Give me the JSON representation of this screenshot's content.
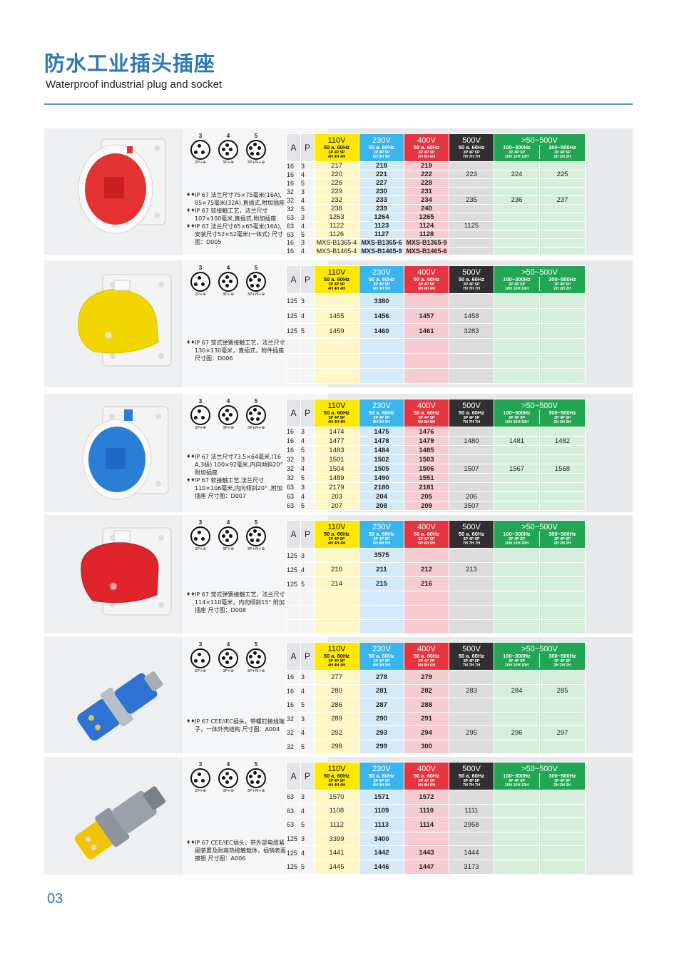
{
  "page": {
    "title_cn": "防水工业插头插座",
    "title_en": "Waterproof industrial plug and socket",
    "page_number": "03"
  },
  "header": {
    "a": "A",
    "p": "P",
    "v110": "110V",
    "s110": "50 a. 60Hz",
    "v230": "230V",
    "s230": "50 a. 60Hz",
    "v400": "400V",
    "s400": "50 a. 60Hz",
    "v500": "500V",
    "s500": "50 a. 60Hz",
    "v50": ">50~500V",
    "s50a": "100~300Hz",
    "s50b": "300~500Hz",
    "pin_labels": {
      "p3": "3",
      "p4": "4",
      "p5": "5",
      "l3": "2P+⊕",
      "l4": "3P+⊕",
      "l5": "3P+N+⊕"
    }
  },
  "colors": {
    "v110": "#ffe800",
    "v230": "#3ab4ec",
    "v400": "#e43540",
    "v500": "#303030",
    "v50": "#23a653",
    "title": "#2d77b6"
  },
  "sections": [
    {
      "product": "red square flange socket",
      "poles": {
        "p110": "3P 4P 5P",
        "h110": "4H 4H 4H",
        "p230": "3P 4P 5P",
        "h230": "6H 9H 9H",
        "p400": "3P 4P 5P",
        "h400": "9H 6H 6H",
        "p500": "3P 4P 5P",
        "h500": "7H 7H 7H",
        "p50a": "3P 4P 5P",
        "h50a": "10H 10H 10H",
        "p50b": "3P 4P 5P",
        "h50b": "2H 2H 2H"
      },
      "notes": [
        "IP 67 法兰尺寸75×75毫米(16A), 85×75毫米(32A),直插式,附加插座",
        "IP 67 软接触工艺，法兰尺寸107×100毫米,直插式,附加插座",
        "IP 67 法兰尺寸65×65毫米(16A), 安装尺寸52×52毫米(一体式) 尺寸图：D005"
      ],
      "rows": [
        [
          "16",
          "3",
          "217",
          "218",
          "219",
          "",
          "",
          ""
        ],
        [
          "16",
          "4",
          "220",
          "221",
          "222",
          "223",
          "224",
          "225"
        ],
        [
          "16",
          "5",
          "226",
          "227",
          "228",
          "",
          "",
          ""
        ],
        [
          "32",
          "3",
          "229",
          "230",
          "231",
          "",
          "",
          ""
        ],
        [
          "32",
          "4",
          "232",
          "233",
          "234",
          "235",
          "236",
          "237"
        ],
        [
          "32",
          "5",
          "238",
          "239",
          "240",
          "",
          "",
          ""
        ],
        [
          "63",
          "3",
          "1263",
          "1264",
          "1265",
          "",
          "",
          ""
        ],
        [
          "63",
          "4",
          "1122",
          "1123",
          "1124",
          "1125",
          "",
          ""
        ],
        [
          "63",
          "5",
          "1126",
          "1127",
          "1128",
          "",
          "",
          ""
        ],
        [
          "16",
          "3",
          "MXS-B1365-4",
          "MXS-B1365-6",
          "MXS-B1365-9",
          "",
          "",
          ""
        ],
        [
          "16",
          "4",
          "MXS-B1465-4",
          "MXS-B1465-9",
          "MXS-B1465-6",
          "",
          "",
          ""
        ]
      ]
    },
    {
      "product": "yellow socket with cover",
      "poles": {
        "p110": "3P 4P 5P",
        "h110": "4H 4H 4H",
        "p230": "3P 4P 5P",
        "h230": "6H 9H 9H",
        "p400": "3P 4P 5P",
        "h400": "9H 6H 6H",
        "p500": "3P 4P 5P",
        "h500": "7H 7H 7H",
        "p50a": "3P 4P 5P",
        "h50a": "10H 10H 10H",
        "p50b": "3P 4P 5P",
        "h50b": "2H 2H 2H"
      },
      "notes": [
        "IP 67 笼式弹簧接触工艺，法兰尺寸130×130毫米，直插式，附件插座 尺寸图：D006"
      ],
      "rows": [
        [
          "125",
          "3",
          "",
          "3380",
          "",
          "",
          "",
          ""
        ],
        [
          "125",
          "4",
          "1455",
          "1456",
          "1457",
          "1458",
          "",
          ""
        ],
        [
          "125",
          "5",
          "1459",
          "1460",
          "1461",
          "3283",
          "",
          ""
        ],
        [
          "",
          "",
          "",
          "",
          "",
          "",
          "",
          ""
        ],
        [
          "",
          "",
          "",
          "",
          "",
          "",
          "",
          ""
        ],
        [
          "",
          "",
          "",
          "",
          "",
          "",
          "",
          ""
        ]
      ]
    },
    {
      "product": "blue angled flange socket",
      "poles": {
        "p110": "3P 4P 5P",
        "h110": "4H 4H 4H",
        "p230": "3P 4P 5P",
        "h230": "6H 9H 9H",
        "p400": "3P 4P 5P",
        "h400": "9H 6H 6H",
        "p500": "3P 4P 5P",
        "h500": "7H 7H 7H",
        "p50a": "3P 4P 5P",
        "h50a": "10H 10H 10H",
        "p50b": "3P 4P 5P",
        "h50b": "2H 2H 2H"
      },
      "notes": [
        "IP 67 法兰尺寸73.5×64毫米,(16 A,3极) 100×92毫米,内向倾斜20° 附加插座",
        "IP 67 软接触工艺,法兰尺寸110×106毫米,内向倾斜20° ,附加插座 尺寸图：D007"
      ],
      "rows": [
        [
          "16",
          "3",
          "1474",
          "1475",
          "1476",
          "",
          "",
          ""
        ],
        [
          "16",
          "4",
          "1477",
          "1478",
          "1479",
          "1480",
          "1481",
          "1482"
        ],
        [
          "16",
          "5",
          "1483",
          "1484",
          "1485",
          "",
          "",
          ""
        ],
        [
          "32",
          "3",
          "1501",
          "1502",
          "1503",
          "",
          "",
          ""
        ],
        [
          "32",
          "4",
          "1504",
          "1505",
          "1506",
          "1507",
          "1567",
          "1568"
        ],
        [
          "32",
          "5",
          "1489",
          "1490",
          "1551",
          "",
          "",
          ""
        ],
        [
          "63",
          "3",
          "2179",
          "2180",
          "2181",
          "",
          "",
          ""
        ],
        [
          "63",
          "4",
          "203",
          "204",
          "205",
          "206",
          "",
          ""
        ],
        [
          "63",
          "5",
          "207",
          "208",
          "209",
          "3507",
          "",
          ""
        ]
      ]
    },
    {
      "product": "red socket with cover",
      "poles": {
        "p110": "3P 4P 5P",
        "h110": "4H 4H 4H",
        "p230": "3P 4P 5P",
        "h230": "6H 9H 9H",
        "p400": "3P 4P 5P",
        "h400": "9H 6H 6H",
        "p500": "3P 4P 5P",
        "h500": "7H 7H 7H",
        "p50a": "3P 4P 5P",
        "h50a": "10H 10H 10H",
        "p50b": "3P 4P 5P",
        "h50b": "2H 2H 2H"
      },
      "notes": [
        "IP 67 笼式弹簧接触工艺，法兰尺寸114×110毫米，内向倾斜15° 附加插座 尺寸图：D008"
      ],
      "rows": [
        [
          "125",
          "3",
          "",
          "3575",
          "",
          "",
          "",
          ""
        ],
        [
          "125",
          "4",
          "210",
          "211",
          "212",
          "213",
          "",
          ""
        ],
        [
          "125",
          "5",
          "214",
          "215",
          "216",
          "",
          "",
          ""
        ],
        [
          "",
          "",
          "",
          "",
          "",
          "",
          "",
          ""
        ],
        [
          "",
          "",
          "",
          "",
          "",
          "",
          "",
          ""
        ],
        [
          "",
          "",
          "",
          "",
          "",
          "",
          "",
          ""
        ]
      ]
    },
    {
      "product": "blue plug",
      "poles": {
        "p110": "3P 4P 5P",
        "h110": "4H 4H 4H",
        "p230": "3P 4P 5P",
        "h230": "6H 9H 9H",
        "p400": "3P 4P 5P",
        "h400": "9H 6H 6H",
        "p500": "3P 4P 5P",
        "h500": "7H 7H 7H",
        "p50a": "3P 4P 5P",
        "h50a": "10H 10H 10H",
        "p50b": "3P 4P 5P",
        "h50b": "2H 2H 2H"
      },
      "notes": [
        "IP 67 CEE/IEC插头，带螺钉接线端子，一体外壳结构 尺寸图：A004"
      ],
      "rows": [
        [
          "16",
          "3",
          "277",
          "278",
          "279",
          "",
          "",
          ""
        ],
        [
          "16",
          "4",
          "280",
          "281",
          "282",
          "283",
          "284",
          "285"
        ],
        [
          "16",
          "5",
          "286",
          "287",
          "288",
          "",
          "",
          ""
        ],
        [
          "32",
          "3",
          "289",
          "290",
          "291",
          "",
          "",
          ""
        ],
        [
          "32",
          "4",
          "292",
          "293",
          "294",
          "295",
          "296",
          "297"
        ],
        [
          "32",
          "5",
          "298",
          "299",
          "300",
          "",
          "",
          ""
        ]
      ]
    },
    {
      "product": "grey plug with yellow tip",
      "poles": {
        "p110": "3P 4P 5P",
        "h110": "4H 4H 4H",
        "p230": "3P 4P 5P",
        "h230": "6H 9H 9H",
        "p400": "3P 4P 5P",
        "h400": "9H 6H 6H",
        "p500": "3P 4P 5P",
        "h500": "7H 7H 7H",
        "p50a": "3P 4P 5P",
        "h50a": "10H 10H 10H",
        "p50b": "3P 4P 5P",
        "h50b": "2H 2H 2H"
      },
      "notes": [
        "IP 67 CEE/IEC插头，带外部电缆紧固装置及耐高热接触载体，插销表面镀银 尺寸图：A006"
      ],
      "rows": [
        [
          "63",
          "3",
          "1570",
          "1571",
          "1572",
          "",
          "",
          ""
        ],
        [
          "63",
          "4",
          "1108",
          "1109",
          "1110",
          "1111",
          "",
          ""
        ],
        [
          "63",
          "5",
          "1112",
          "1113",
          "1114",
          "2958",
          "",
          ""
        ],
        [
          "125",
          "3",
          "3399",
          "3400",
          "",
          "",
          "",
          ""
        ],
        [
          "125",
          "4",
          "1441",
          "1442",
          "1443",
          "1444",
          "",
          ""
        ],
        [
          "125",
          "5",
          "1445",
          "1446",
          "1447",
          "3173",
          "",
          ""
        ]
      ]
    }
  ]
}
